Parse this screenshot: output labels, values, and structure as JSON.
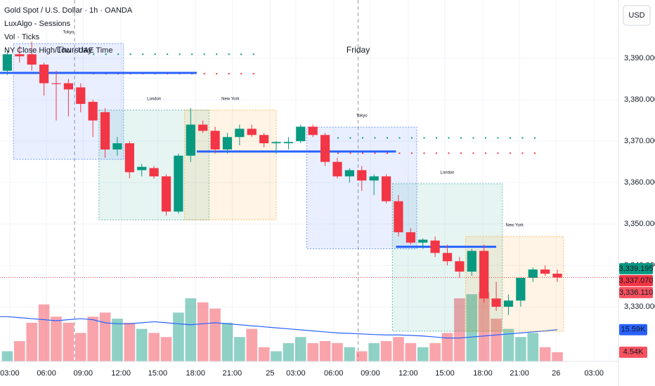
{
  "header": {
    "symbol": "Gold Spot / U.S. Dollar · 1h · OANDA",
    "indicators": [
      "LuxAlgo - Sessions",
      "Vol · Ticks",
      "NY Close High/Low - UAE Time"
    ],
    "currency": "USD"
  },
  "chart_data": {
    "type": "candlestick",
    "open": [
      3387,
      3391,
      3391,
      3388.5,
      3384,
      3384,
      3383,
      3379.5,
      3377,
      3368,
      3369.5,
      3363,
      3363.5,
      3361.5,
      3353,
      3366.5,
      3374,
      3372.5,
      3368,
      3371,
      3373,
      3371.5,
      3369.5,
      3369.5,
      3370,
      3373.5,
      3371.5,
      3365,
      3361.5,
      3363,
      3360.5,
      3361.5,
      3355.5,
      3348,
      3345.5,
      3346,
      3343,
      3341,
      3338.5,
      3343.5,
      3332,
      3330,
      3331.5,
      3337,
      3339,
      3338
    ],
    "high": [
      3392,
      3393,
      3394,
      3389,
      3387,
      3385,
      3384,
      3380,
      3378,
      3371,
      3370,
      3364.5,
      3364,
      3362,
      3367,
      3378,
      3375,
      3373.5,
      3372,
      3374,
      3374,
      3372,
      3370,
      3371,
      3374,
      3374,
      3372,
      3366,
      3363.5,
      3364,
      3362,
      3362,
      3357,
      3349,
      3346.5,
      3347,
      3345,
      3342,
      3344,
      3345,
      3336,
      3333,
      3337,
      3339.5,
      3340,
      3339
    ],
    "low": [
      3386,
      3389,
      3387,
      3381,
      3375,
      3376,
      3377,
      3371,
      3366,
      3366.5,
      3361,
      3361.5,
      3361,
      3352,
      3352.5,
      3365,
      3372,
      3367,
      3367,
      3369,
      3371,
      3368.5,
      3367,
      3368,
      3369.5,
      3371,
      3364,
      3361,
      3360,
      3358,
      3357,
      3355,
      3347,
      3345,
      3344,
      3342,
      3340,
      3337,
      3337.5,
      3331,
      3329,
      3328,
      3330,
      3336,
      3337.5,
      3336
    ],
    "close": [
      3391,
      3390.5,
      3388.5,
      3384,
      3383.8,
      3382.5,
      3379,
      3375,
      3368,
      3369.5,
      3362.5,
      3363.8,
      3361.5,
      3353,
      3366.5,
      3374,
      3372.5,
      3368,
      3371,
      3373,
      3371.5,
      3369.5,
      3369.8,
      3369.8,
      3373.5,
      3371.5,
      3365,
      3361.5,
      3363,
      3360.5,
      3361.5,
      3355.5,
      3348,
      3345.5,
      3346.2,
      3343,
      3341,
      3338.5,
      3343.5,
      3332,
      3330,
      3331.5,
      3337,
      3339,
      3338,
      3337.07
    ],
    "volume": [
      5,
      10,
      19,
      28,
      22,
      19,
      14,
      22,
      24,
      21,
      19,
      16,
      14,
      12,
      24,
      31,
      29,
      26,
      19,
      12,
      16,
      7,
      5,
      9,
      12,
      9,
      10,
      9,
      7,
      5,
      9,
      10,
      12,
      9,
      7,
      9,
      14,
      31,
      33,
      34,
      21,
      16,
      12,
      14,
      7,
      4.54
    ],
    "volume_ma": [
      22,
      21.5,
      21,
      20.5,
      20,
      20.5,
      21,
      20.5,
      19,
      18.5,
      18.5,
      19,
      19.5,
      19,
      18.5,
      18,
      18.5,
      19,
      18.5,
      18,
      17.5,
      17,
      16.5,
      16,
      15.5,
      15,
      14.5,
      14,
      13.8,
      13.5,
      13.2,
      13,
      13,
      12.8,
      12.5,
      12,
      11.5,
      11.5,
      12,
      12.5,
      13,
      13.5,
      14,
      14.5,
      15,
      15.59
    ],
    "up_color": "#089981",
    "down_color": "#f23645",
    "ylim": [
      3316.8,
      3404.1
    ],
    "yticks": [
      {
        "value": 3330,
        "label": "3,330.000"
      },
      {
        "value": 3340,
        "label": "3,340.000"
      },
      {
        "value": 3350,
        "label": "3,350.000"
      },
      {
        "value": 3360,
        "label": "3,360.000"
      },
      {
        "value": 3370,
        "label": "3,370.000"
      },
      {
        "value": 3380,
        "label": "3,380.000"
      },
      {
        "value": 3390,
        "label": "3,390.000"
      }
    ],
    "xlim": [
      -0.6,
      50
    ],
    "xticks": [
      {
        "value": 0.2,
        "label": "03:00"
      },
      {
        "value": 3.2,
        "label": "06:00"
      },
      {
        "value": 6.2,
        "label": "09:00"
      },
      {
        "value": 9.3,
        "label": "12:00"
      },
      {
        "value": 12.3,
        "label": "15:00"
      },
      {
        "value": 15.4,
        "label": "18:00"
      },
      {
        "value": 18.4,
        "label": "21:00"
      },
      {
        "value": 21.5,
        "label": "25"
      },
      {
        "value": 23.6,
        "label": "03:00"
      },
      {
        "value": 26.7,
        "label": "06:00"
      },
      {
        "value": 29.7,
        "label": "09:00"
      },
      {
        "value": 32.8,
        "label": "12:00"
      },
      {
        "value": 35.8,
        "label": "15:00"
      },
      {
        "value": 38.9,
        "label": "18:00"
      },
      {
        "value": 41.9,
        "label": "21:00"
      },
      {
        "value": 44.9,
        "label": "26"
      },
      {
        "value": 48,
        "label": "03:00"
      }
    ],
    "vlim": [
      0,
      60
    ],
    "grid": true,
    "sessions": [
      {
        "name": "Tokyo",
        "start": 1,
        "end": 9,
        "high": 3393.6,
        "low": 3365.6,
        "color": "#2962ff"
      },
      {
        "name": "London",
        "start": 8,
        "end": 16,
        "high": 3377.5,
        "low": 3351,
        "color": "#089981"
      },
      {
        "name": "New York",
        "start": 15,
        "end": 21.5,
        "high": 3377.5,
        "low": 3351,
        "color": "#ff9800"
      },
      {
        "name": "Tokyo",
        "start": 25,
        "end": 33,
        "high": 3373.4,
        "low": 3344,
        "color": "#2962ff"
      },
      {
        "name": "London",
        "start": 32,
        "end": 40,
        "high": 3359.7,
        "low": 3324.1,
        "color": "#089981"
      },
      {
        "name": "New York",
        "start": 38,
        "end": 45,
        "high": 3347,
        "low": 3324.1,
        "color": "#ff9800"
      }
    ],
    "ny_levels": [
      {
        "start": -0.6,
        "end": 15.5,
        "value": 3386.5
      },
      {
        "start": 15.5,
        "end": 31.8,
        "value": 3367.5
      },
      {
        "start": 31.8,
        "end": 40,
        "value": 3344.5
      }
    ],
    "session_levels": [
      {
        "start": 7,
        "end": 21,
        "value": 3391,
        "color": "#089981"
      },
      {
        "start": 7,
        "end": 21,
        "value": 3386.3,
        "color": "#f23645"
      },
      {
        "start": 27,
        "end": 44,
        "value": 3370.8,
        "color": "#089981"
      },
      {
        "start": 27,
        "end": 44,
        "value": 3367.1,
        "color": "#f23645"
      }
    ],
    "day_labels": [
      {
        "label": "Thursday",
        "at": 5.5
      },
      {
        "label": "Friday",
        "at": 28.7
      }
    ],
    "price_tags": [
      {
        "value": 3339.195,
        "label": "3,339.195",
        "color": "#089981"
      },
      {
        "value": 3337.07,
        "label": "3,337.070",
        "color": "#f23645"
      },
      {
        "value": 3336.11,
        "label": "3,336.110",
        "color": "#f7525f"
      }
    ],
    "volume_tags": [
      {
        "value": 15.59,
        "label": "15.59K",
        "color": "#2962ff"
      },
      {
        "value": 4.54,
        "label": "4.54K",
        "color": "#f7525f"
      }
    ]
  }
}
